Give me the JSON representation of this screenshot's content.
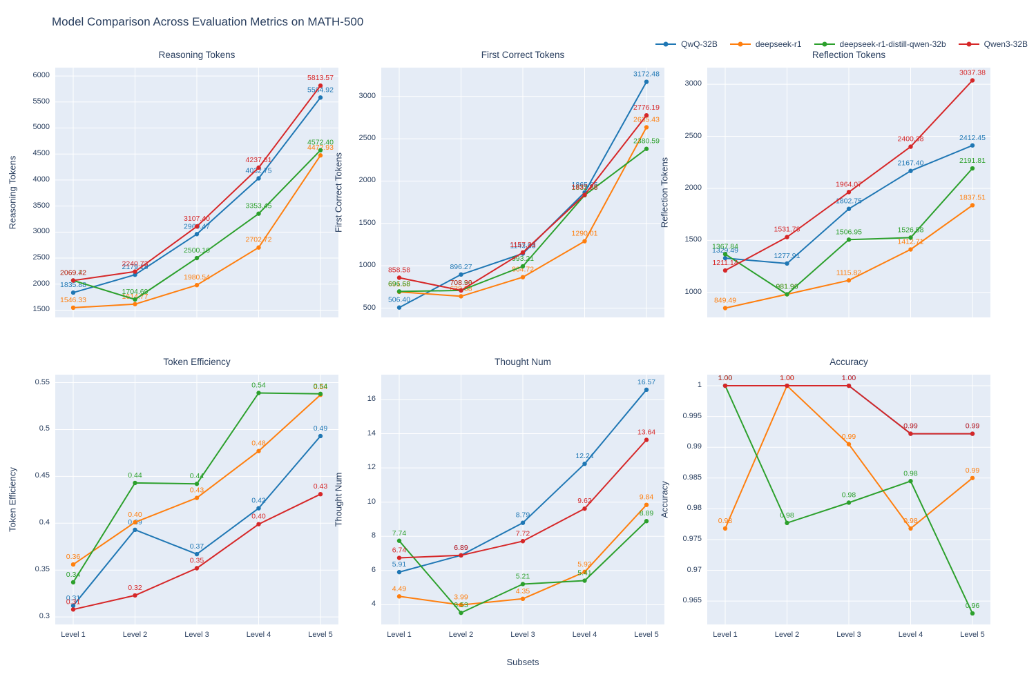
{
  "page": {
    "title": "Model Comparison Across Evaluation Metrics on MATH-500",
    "xlabel": "Subsets",
    "plot_bg": "#e5ecf6",
    "grid_color": "#ffffff",
    "text_color": "#2a3f5f"
  },
  "legend": [
    {
      "name": "QwQ-32B",
      "color": "#1f77b4"
    },
    {
      "name": "deepseek-r1",
      "color": "#ff7f0e"
    },
    {
      "name": "deepseek-r1-distill-qwen-32b",
      "color": "#2ca02c"
    },
    {
      "name": "Qwen3-32B",
      "color": "#d62728"
    }
  ],
  "categories": [
    "Level 1",
    "Level 2",
    "Level 3",
    "Level 4",
    "Level 5"
  ],
  "chart_data": [
    {
      "type": "line",
      "title": "Reasoning Tokens",
      "ylabel": "Reasoning Tokens",
      "ylim": [
        1360,
        6160
      ],
      "yticks": [
        1500,
        2000,
        2500,
        3000,
        3500,
        4000,
        4500,
        5000,
        5500,
        6000
      ],
      "ytick_labels": [
        "1500",
        "2000",
        "2500",
        "3000",
        "3500",
        "4000",
        "4500",
        "5000",
        "5500",
        "6000"
      ],
      "series": [
        {
          "name": "QwQ-32B",
          "color": "#1f77b4",
          "values": [
            1835.88,
            2179.18,
            2960.47,
            4032.75,
            5584.92
          ]
        },
        {
          "name": "deepseek-r1",
          "color": "#ff7f0e",
          "values": [
            1546.33,
            1614.77,
            1980.54,
            2702.72,
            4472.93
          ]
        },
        {
          "name": "deepseek-r1-distill-qwen-32b",
          "color": "#2ca02c",
          "values": [
            2069.72,
            1704.69,
            2500.16,
            3353.45,
            4572.4
          ]
        },
        {
          "name": "Qwen3-32B",
          "color": "#d62728",
          "values": [
            2069.42,
            2240.73,
            3107.4,
            4237.61,
            5813.57
          ]
        }
      ]
    },
    {
      "type": "line",
      "title": "First Correct Tokens",
      "ylabel": "First Correct Tokens",
      "ylim": [
        390,
        3340
      ],
      "yticks": [
        500,
        1000,
        1500,
        2000,
        2500,
        3000
      ],
      "ytick_labels": [
        "500",
        "1000",
        "1500",
        "2000",
        "2500",
        "3000"
      ],
      "series": [
        {
          "name": "QwQ-32B",
          "color": "#1f77b4",
          "values": [
            506.4,
            896.27,
            1143.63,
            1865.85,
            3172.48
          ]
        },
        {
          "name": "deepseek-r1",
          "color": "#ff7f0e",
          "values": [
            691.58,
            639.38,
            864.72,
            1290.01,
            2635.43
          ]
        },
        {
          "name": "deepseek-r1-distill-qwen-32b",
          "color": "#2ca02c",
          "values": [
            696.68,
            708.96,
            993.21,
            1832.88,
            2380.59
          ]
        },
        {
          "name": "Qwen3-32B",
          "color": "#d62728",
          "values": [
            858.58,
            708.3,
            1157.33,
            1837.28,
            2776.19
          ]
        }
      ]
    },
    {
      "type": "line",
      "title": "Reflection Tokens",
      "ylabel": "Reflection Tokens",
      "ylim": [
        760,
        3160
      ],
      "yticks": [
        1000,
        1500,
        2000,
        2500,
        3000
      ],
      "ytick_labels": [
        "1000",
        "1500",
        "2000",
        "2500",
        "3000"
      ],
      "series": [
        {
          "name": "QwQ-32B",
          "color": "#1f77b4",
          "values": [
            1329.49,
            1277.91,
            1802.75,
            2167.4,
            2412.45
          ]
        },
        {
          "name": "deepseek-r1",
          "color": "#ff7f0e",
          "values": [
            849.49,
            981.9,
            1115.82,
            1412.71,
            1837.51
          ]
        },
        {
          "name": "deepseek-r1-distill-qwen-32b",
          "color": "#2ca02c",
          "values": [
            1367.84,
            981.96,
            1506.95,
            1526.58,
            2191.81
          ]
        },
        {
          "name": "Qwen3-32B",
          "color": "#d62728",
          "values": [
            1211.14,
            1531.78,
            1964.07,
            2400.38,
            3037.38
          ]
        }
      ]
    },
    {
      "type": "line",
      "title": "Token Efficiency",
      "ylabel": "Token Efficiency",
      "ylim": [
        0.292,
        0.5585
      ],
      "yticks": [
        0.3,
        0.35,
        0.4,
        0.45,
        0.5,
        0.55
      ],
      "ytick_labels": [
        "0.3",
        "0.35",
        "0.4",
        "0.45",
        "0.5",
        "0.55"
      ],
      "series": [
        {
          "name": "QwQ-32B",
          "color": "#1f77b4",
          "values": [
            0.312,
            0.393,
            0.367,
            0.416,
            0.493
          ],
          "labels": [
            "0.31",
            "0.39",
            "0.37",
            "0.42",
            "0.49"
          ]
        },
        {
          "name": "deepseek-r1",
          "color": "#ff7f0e",
          "values": [
            0.356,
            0.401,
            0.427,
            0.477,
            0.537
          ],
          "labels": [
            "0.36",
            "0.40",
            "0.43",
            "0.48",
            "0.54"
          ]
        },
        {
          "name": "deepseek-r1-distill-qwen-32b",
          "color": "#2ca02c",
          "values": [
            0.337,
            0.443,
            0.442,
            0.539,
            0.538
          ],
          "labels": [
            "0.34",
            "0.44",
            "0.44",
            "0.54",
            "0.54"
          ]
        },
        {
          "name": "Qwen3-32B",
          "color": "#d62728",
          "values": [
            0.308,
            0.323,
            0.352,
            0.399,
            0.431
          ],
          "labels": [
            "0.31",
            "0.32",
            "0.35",
            "0.40",
            "0.43"
          ]
        }
      ]
    },
    {
      "type": "line",
      "title": "Thought Num",
      "ylabel": "Thought Num",
      "ylim": [
        2.85,
        17.45
      ],
      "yticks": [
        4,
        6,
        8,
        10,
        12,
        14,
        16
      ],
      "ytick_labels": [
        "4",
        "6",
        "8",
        "10",
        "12",
        "14",
        "16"
      ],
      "series": [
        {
          "name": "QwQ-32B",
          "color": "#1f77b4",
          "values": [
            5.91,
            6.89,
            8.79,
            12.24,
            16.57
          ]
        },
        {
          "name": "deepseek-r1",
          "color": "#ff7f0e",
          "values": [
            4.49,
            3.99,
            4.35,
            5.92,
            9.84
          ]
        },
        {
          "name": "deepseek-r1-distill-qwen-32b",
          "color": "#2ca02c",
          "values": [
            7.74,
            3.53,
            5.21,
            5.41,
            8.89
          ]
        },
        {
          "name": "Qwen3-32B",
          "color": "#d62728",
          "values": [
            6.74,
            6.89,
            7.72,
            9.62,
            13.64
          ]
        }
      ]
    },
    {
      "type": "line",
      "title": "Accuracy",
      "ylabel": "Accuracy",
      "ylim": [
        0.9612,
        1.0018
      ],
      "yticks": [
        0.965,
        0.97,
        0.975,
        0.98,
        0.985,
        0.99,
        0.995,
        1
      ],
      "ytick_labels": [
        "0.965",
        "0.97",
        "0.975",
        "0.98",
        "0.985",
        "0.99",
        "0.995",
        "1"
      ],
      "series": [
        {
          "name": "QwQ-32B",
          "color": "#1f77b4",
          "values": [
            1.0,
            1.0,
            1.0,
            0.9922,
            0.9922
          ],
          "labels": [
            "1.00",
            "1.00",
            "1.00",
            "0.99",
            "0.99"
          ]
        },
        {
          "name": "deepseek-r1",
          "color": "#ff7f0e",
          "values": [
            0.9768,
            1.0,
            0.9905,
            0.9768,
            0.985
          ],
          "labels": [
            "0.98",
            "1.00",
            "0.99",
            "0.98",
            "0.99"
          ]
        },
        {
          "name": "deepseek-r1-distill-qwen-32b",
          "color": "#2ca02c",
          "values": [
            1.0,
            0.9777,
            0.981,
            0.9845,
            0.963
          ],
          "labels": [
            "1.00",
            "0.98",
            "0.98",
            "0.98",
            "0.96"
          ]
        },
        {
          "name": "Qwen3-32B",
          "color": "#d62728",
          "values": [
            1.0,
            1.0,
            1.0,
            0.9922,
            0.9922
          ],
          "labels": [
            "1.00",
            "1.00",
            "1.00",
            "0.99",
            "0.99"
          ]
        }
      ]
    }
  ]
}
